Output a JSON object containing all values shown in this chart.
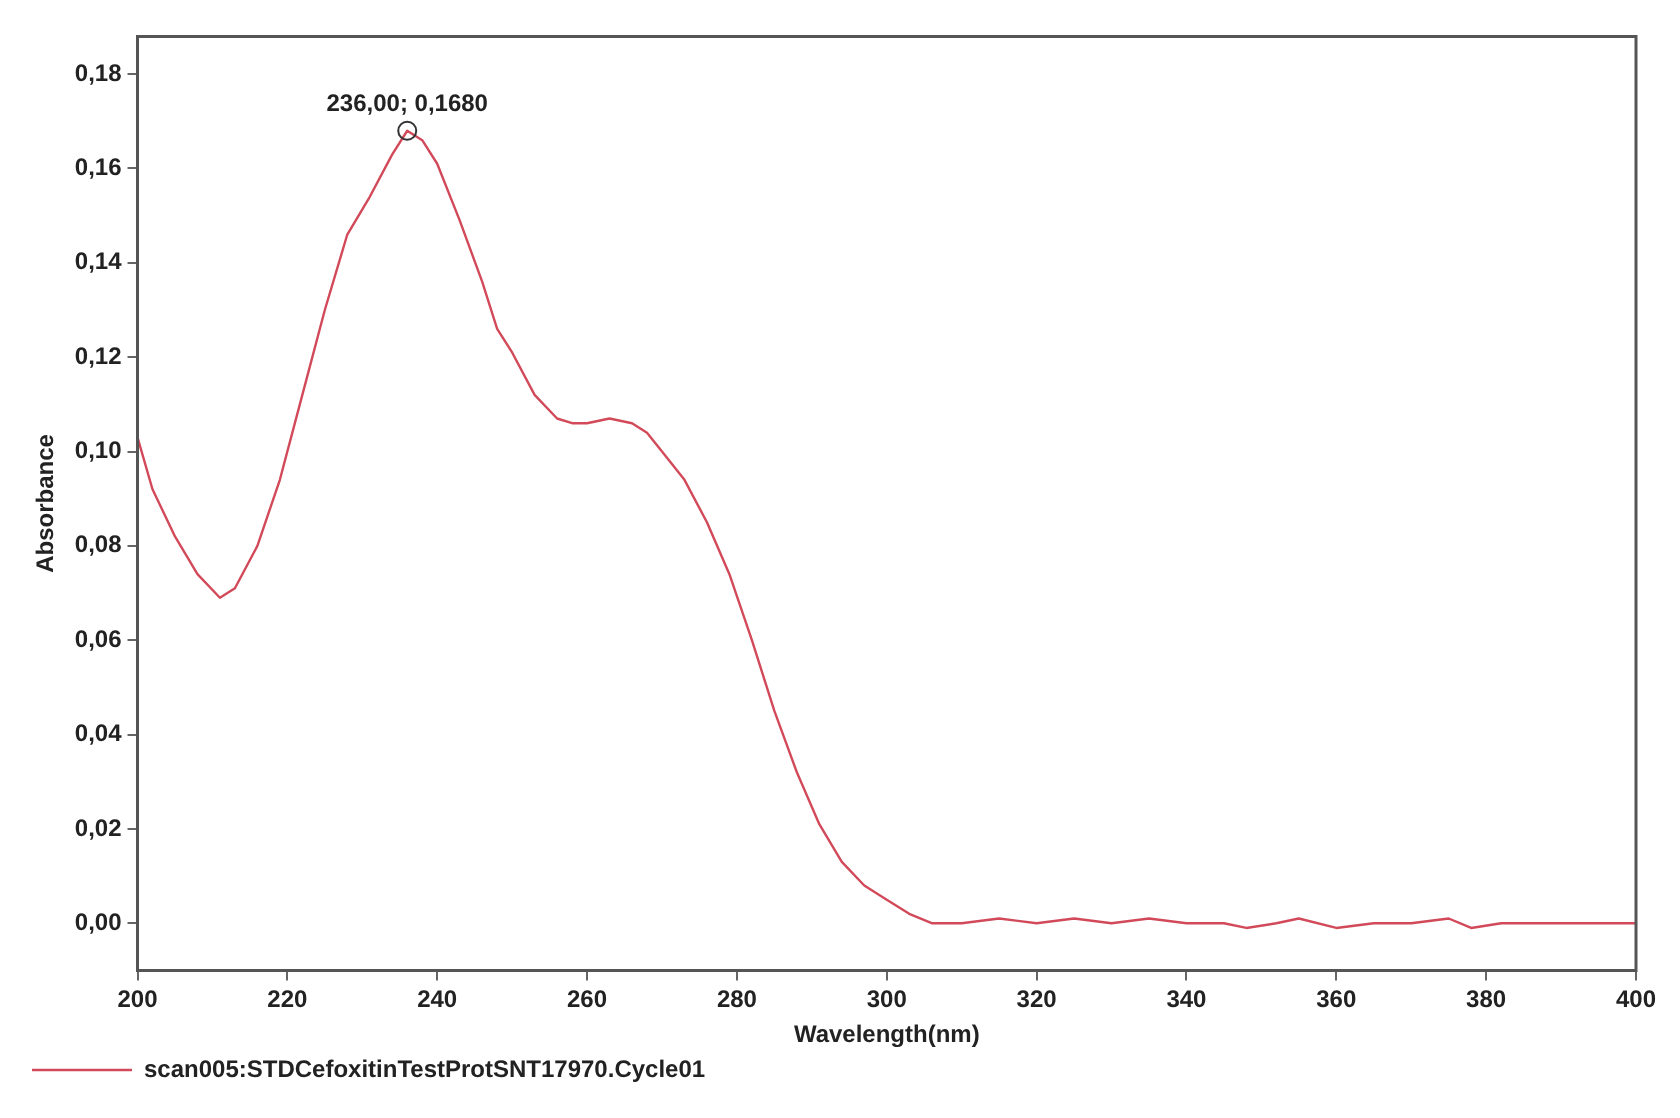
{
  "chart_data": {
    "type": "line",
    "xlabel": "Wavelength(nm)",
    "ylabel": "Absorbance",
    "xlim": [
      200,
      400
    ],
    "xticks": [
      200,
      220,
      240,
      260,
      280,
      300,
      320,
      340,
      360,
      380,
      400
    ],
    "ylim": [
      -0.01,
      0.188
    ],
    "yticks": [
      {
        "value": 0,
        "label": "0,00"
      },
      {
        "value": 0.02,
        "label": "0,02"
      },
      {
        "value": 0.04,
        "label": "0,04"
      },
      {
        "value": 0.06,
        "label": "0,06"
      },
      {
        "value": 0.08,
        "label": "0,08"
      },
      {
        "value": 0.1,
        "label": "0,10"
      },
      {
        "value": 0.12,
        "label": "0,12"
      },
      {
        "value": 0.14,
        "label": "0,14"
      },
      {
        "value": 0.16,
        "label": "0,16"
      },
      {
        "value": 0.18,
        "label": "0,18"
      }
    ],
    "grid": false,
    "legend": "bottom",
    "marker": "none",
    "line_style": "solid",
    "annotations": [
      {
        "text": "236,00; 0,1680",
        "x": 236,
        "y": 0.168
      }
    ],
    "series": [
      {
        "name": "scan005:STDCefoxitinTestProtSNT17970.Cycle01",
        "color": "#d24a5a",
        "x": [
          200,
          202,
          205,
          208,
          211,
          213,
          216,
          219,
          222,
          225,
          228,
          231,
          234,
          236,
          238,
          240,
          243,
          246,
          248,
          250,
          253,
          256,
          258,
          260,
          263,
          266,
          268,
          270,
          273,
          276,
          279,
          282,
          285,
          288,
          291,
          294,
          297,
          300,
          303,
          306,
          310,
          315,
          320,
          325,
          330,
          335,
          340,
          345,
          348,
          352,
          355,
          360,
          365,
          370,
          375,
          378,
          382,
          386,
          390,
          395,
          400
        ],
        "values": [
          0.103,
          0.092,
          0.082,
          0.074,
          0.069,
          0.071,
          0.08,
          0.094,
          0.112,
          0.13,
          0.146,
          0.154,
          0.163,
          0.168,
          0.166,
          0.161,
          0.149,
          0.136,
          0.126,
          0.121,
          0.112,
          0.107,
          0.106,
          0.106,
          0.107,
          0.106,
          0.104,
          0.1,
          0.094,
          0.085,
          0.074,
          0.06,
          0.045,
          0.032,
          0.021,
          0.013,
          0.008,
          0.005,
          0.002,
          0,
          0,
          0.001,
          0,
          0.001,
          0,
          0.001,
          0,
          0,
          -0.001,
          0,
          0.001,
          -0.001,
          0,
          0,
          0.001,
          -0.001,
          0,
          0,
          0,
          0,
          0
        ]
      }
    ]
  }
}
